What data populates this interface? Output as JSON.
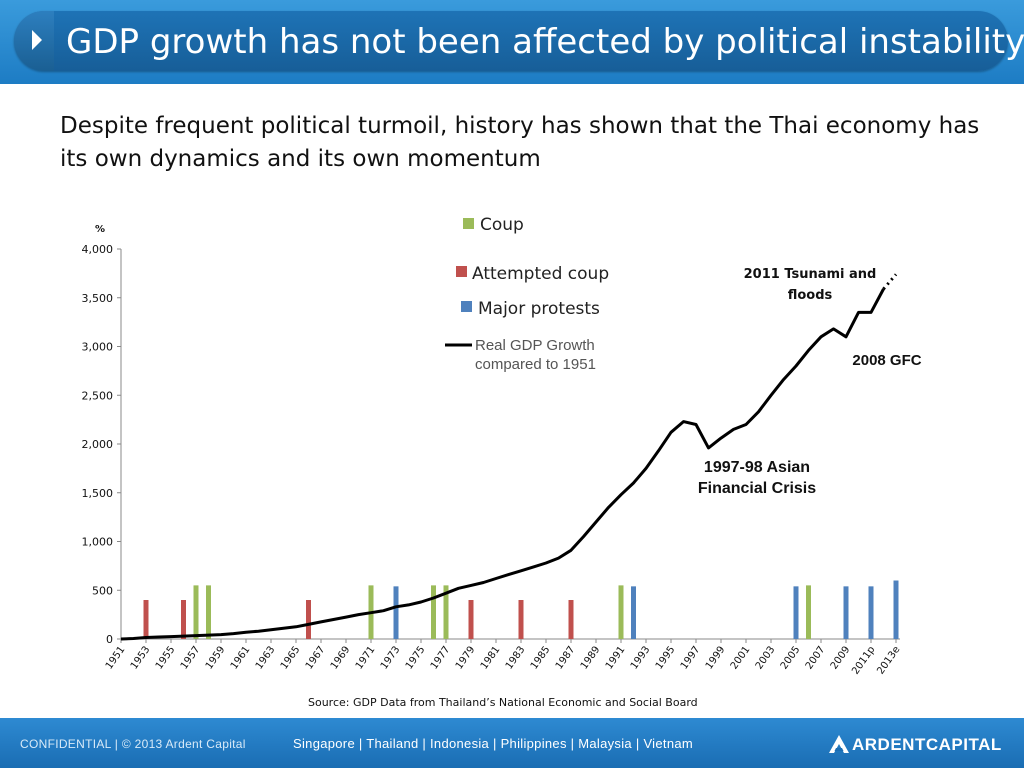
{
  "header": {
    "title": "GDP growth has not been affected by political instability"
  },
  "subtitle": "Despite frequent political turmoil, history has shown that the Thai economy has its own dynamics and its own momentum",
  "source": "Source: GDP Data from Thailand’s National Economic and Social Board",
  "footer": {
    "confidential": "CONFIDENTIAL  |  © 2013  Ardent Capital",
    "locations": "Singapore   |   Thailand   |   Indonesia   |   Philippines   |   Malaysia   |   Vietnam",
    "logo": "ARDENTCAPITAL"
  },
  "colors": {
    "coup": "#9bbb59",
    "attempted_coup": "#c0504d",
    "major_protests": "#4f81bd",
    "gdp_line": "#000000"
  },
  "chart_data": {
    "type": "line",
    "ylabel": "%",
    "ylim": [
      0,
      4000
    ],
    "yticks": [
      0,
      500,
      1000,
      1500,
      2000,
      2500,
      3000,
      3500,
      4000
    ],
    "ytick_labels": [
      "0",
      "500",
      "1,000",
      "1,500",
      "2,000",
      "2,500",
      "3,000",
      "3,500",
      "4,000"
    ],
    "xtick_labels": [
      "1951",
      "1953",
      "1955",
      "1957",
      "1959",
      "1961",
      "1963",
      "1965",
      "1967",
      "1969",
      "1971",
      "1973",
      "1975",
      "1977",
      "1979",
      "1981",
      "1983",
      "1985",
      "1987",
      "1989",
      "1991",
      "1993",
      "1995",
      "1997",
      "1999",
      "2001",
      "2003",
      "2005",
      "2007",
      "2009",
      "2011p",
      "2013e"
    ],
    "grid": false,
    "legend": [
      {
        "label": "Coup",
        "key": "coup"
      },
      {
        "label": "Attempted coup",
        "key": "attempted_coup"
      },
      {
        "label": "Major protests",
        "key": "major_protests"
      },
      {
        "label": "Real GDP Growth compared to 1951",
        "key": "gdp_line"
      }
    ],
    "series": [
      {
        "name": "Real GDP Growth compared to 1951",
        "x": [
          1951,
          1952,
          1953,
          1954,
          1955,
          1956,
          1957,
          1958,
          1959,
          1960,
          1961,
          1962,
          1963,
          1964,
          1965,
          1966,
          1967,
          1968,
          1969,
          1970,
          1971,
          1972,
          1973,
          1974,
          1975,
          1976,
          1977,
          1978,
          1979,
          1980,
          1981,
          1982,
          1983,
          1984,
          1985,
          1986,
          1987,
          1988,
          1989,
          1990,
          1991,
          1992,
          1993,
          1994,
          1995,
          1996,
          1997,
          1998,
          1999,
          2000,
          2001,
          2002,
          2003,
          2004,
          2005,
          2006,
          2007,
          2008,
          2009,
          2010,
          2011,
          2012
        ],
        "values": [
          0,
          5,
          15,
          20,
          25,
          30,
          35,
          40,
          45,
          55,
          70,
          80,
          95,
          110,
          125,
          150,
          175,
          200,
          225,
          250,
          270,
          290,
          330,
          350,
          380,
          420,
          470,
          520,
          550,
          580,
          620,
          660,
          700,
          740,
          780,
          830,
          910,
          1050,
          1200,
          1350,
          1480,
          1600,
          1750,
          1930,
          2120,
          2230,
          2200,
          1960,
          2060,
          2150,
          2200,
          2330,
          2500,
          2660,
          2800,
          2960,
          3100,
          3180,
          3100,
          3350,
          3350,
          3590
        ]
      }
    ],
    "projection": {
      "x": [
        2012,
        2013
      ],
      "values": [
        3590,
        3740
      ]
    },
    "events": [
      {
        "type": "attempted_coup",
        "year": 1953,
        "value": 400
      },
      {
        "type": "attempted_coup",
        "year": 1956,
        "value": 400
      },
      {
        "type": "coup",
        "year": 1957,
        "value": 550
      },
      {
        "type": "coup",
        "year": 1958,
        "value": 550
      },
      {
        "type": "attempted_coup",
        "year": 1966,
        "value": 400
      },
      {
        "type": "coup",
        "year": 1971,
        "value": 550
      },
      {
        "type": "major_protests",
        "year": 1973,
        "value": 540
      },
      {
        "type": "coup",
        "year": 1976,
        "value": 550
      },
      {
        "type": "coup",
        "year": 1977,
        "value": 550
      },
      {
        "type": "attempted_coup",
        "year": 1979,
        "value": 400
      },
      {
        "type": "attempted_coup",
        "year": 1983,
        "value": 400
      },
      {
        "type": "attempted_coup",
        "year": 1987,
        "value": 400
      },
      {
        "type": "coup",
        "year": 1991,
        "value": 550
      },
      {
        "type": "major_protests",
        "year": 1992,
        "value": 540
      },
      {
        "type": "major_protests",
        "year": 2005,
        "value": 540
      },
      {
        "type": "coup",
        "year": 2006,
        "value": 550
      },
      {
        "type": "major_protests",
        "year": 2009,
        "value": 540
      },
      {
        "type": "major_protests",
        "year": 2011,
        "value": 540
      },
      {
        "type": "major_protests",
        "year": 2013,
        "value": 600
      }
    ],
    "annotations": [
      {
        "text": "2011 Tsunami and floods",
        "anchor_year": 2011,
        "style": "small-bold"
      },
      {
        "text": "2008 GFC",
        "anchor_year": 2008,
        "style": "bold"
      },
      {
        "text": "1997-98 Asian Financial Crisis",
        "anchor_year": 1998,
        "style": "bold"
      }
    ]
  }
}
